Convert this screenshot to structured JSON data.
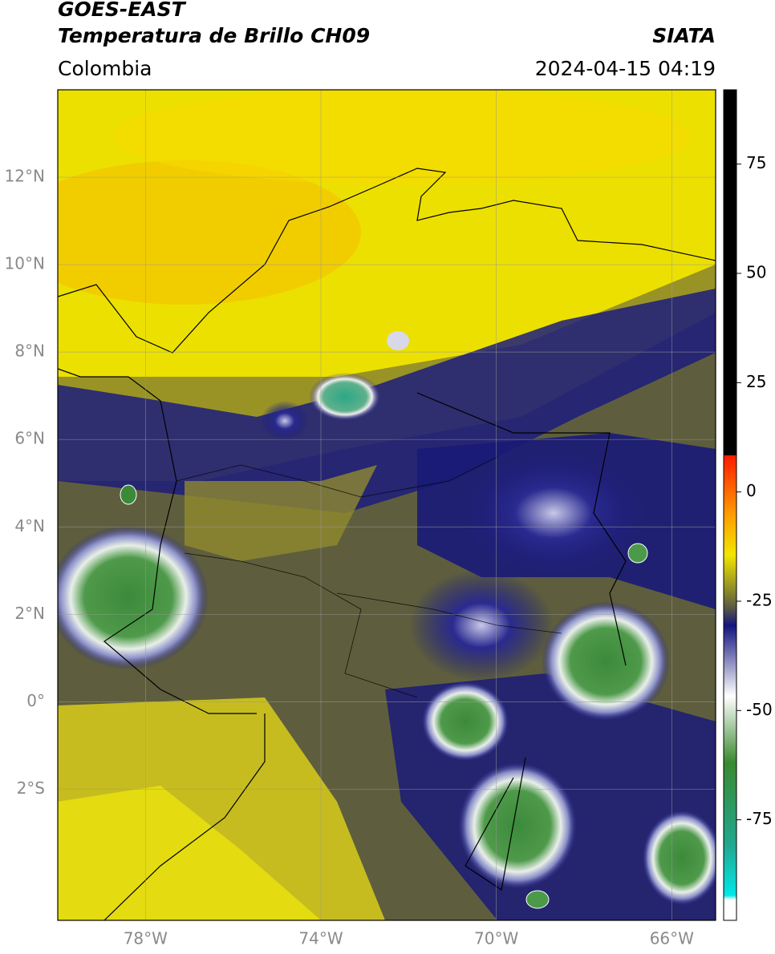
{
  "chart_data": {
    "type": "map",
    "title": "GOES-EAST",
    "subtitle": "Temperatura de Brillo CH09",
    "region": "Colombia",
    "source": "SIATA",
    "timestamp": "2024-04-15 04:19",
    "xlim": [
      -80,
      -65
    ],
    "ylim": [
      -5,
      14
    ],
    "xticks": [
      {
        "value": -78,
        "label": "78°W"
      },
      {
        "value": -74,
        "label": "74°W"
      },
      {
        "value": -70,
        "label": "70°W"
      },
      {
        "value": -66,
        "label": "66°W"
      }
    ],
    "yticks": [
      {
        "value": 12,
        "label": "12°N"
      },
      {
        "value": 10,
        "label": "10°N"
      },
      {
        "value": 8,
        "label": "8°N"
      },
      {
        "value": 6,
        "label": "6°N"
      },
      {
        "value": 4,
        "label": "4°N"
      },
      {
        "value": 2,
        "label": "2°N"
      },
      {
        "value": 0,
        "label": "0°"
      },
      {
        "value": -2,
        "label": "2°S"
      }
    ],
    "grid": true,
    "colorbar": {
      "lim": [
        -98,
        92
      ],
      "ticks": [
        75,
        50,
        25,
        0,
        -25,
        -50,
        -75
      ]
    }
  }
}
